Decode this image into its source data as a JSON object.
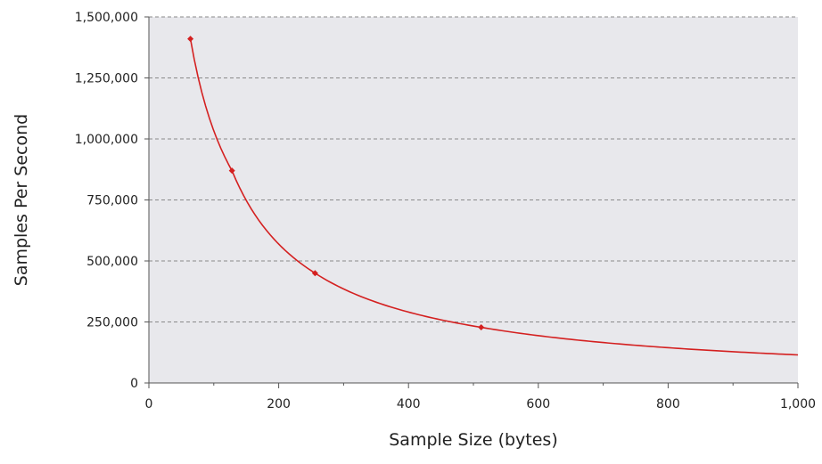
{
  "chart_data": {
    "type": "line",
    "title": "",
    "xlabel": "Sample Size (bytes)",
    "ylabel": "Samples Per Second",
    "xlim": [
      0,
      1000
    ],
    "ylim": [
      0,
      1500000
    ],
    "x_ticks": [
      0,
      200,
      400,
      600,
      800,
      1000
    ],
    "x_tick_labels": [
      "0",
      "200",
      "400",
      "600",
      "800",
      "1,000"
    ],
    "y_ticks": [
      0,
      250000,
      500000,
      750000,
      1000000,
      1250000,
      1500000
    ],
    "y_tick_labels": [
      "0",
      "250,000",
      "500,000",
      "750,000",
      "1,000,000",
      "1,250,000",
      "1,500,000"
    ],
    "grid": "horizontal dashed",
    "legend": "none",
    "series": [
      {
        "points": [
          {
            "x": 64,
            "y": 1410000
          },
          {
            "x": 128,
            "y": 870000
          },
          {
            "x": 256,
            "y": 450000
          },
          {
            "x": 512,
            "y": 228000
          }
        ],
        "curve_end": {
          "x": 1000,
          "y": 115000
        }
      }
    ],
    "colors": {
      "series": "#d42020",
      "plot_background": "#e8e8ec",
      "grid": "#8a8a8a",
      "axis": "#555555"
    }
  }
}
